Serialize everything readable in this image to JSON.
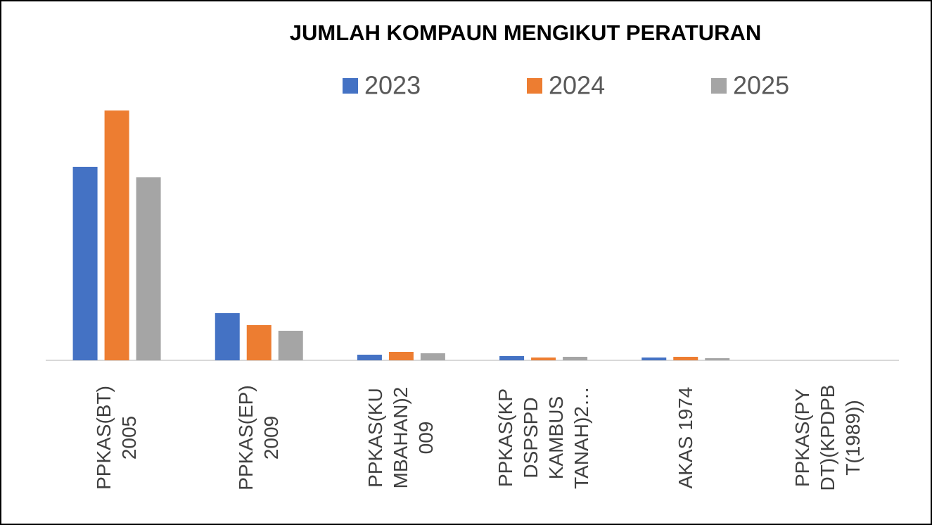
{
  "chart_data": {
    "type": "bar",
    "title": "JUMLAH KOMPAUN MENGIKUT PERATURAN",
    "categories": [
      "PPKAS(BT)\n2005",
      "PPKAS(EP)\n2009",
      "PPKAS(KU\nMBAHAN)2\n009",
      "PPKAS(KP\nDSPSPD\nKAMBUS\nTANAH)2…",
      "AKAS 1974",
      "PPKAS(PY\nDT)(KPDPB\nT(1989))"
    ],
    "series": [
      {
        "name": "2023",
        "color": "#4472c4",
        "values": [
          275,
          67,
          8,
          6,
          4,
          0
        ]
      },
      {
        "name": "2024",
        "color": "#ed7d31",
        "values": [
          355,
          50,
          12,
          4,
          5,
          0
        ]
      },
      {
        "name": "2025",
        "color": "#a5a5a5",
        "values": [
          260,
          42,
          10,
          5,
          3,
          0
        ]
      }
    ],
    "ylim": [
      0,
      355
    ],
    "grid": false,
    "legend": "top"
  }
}
